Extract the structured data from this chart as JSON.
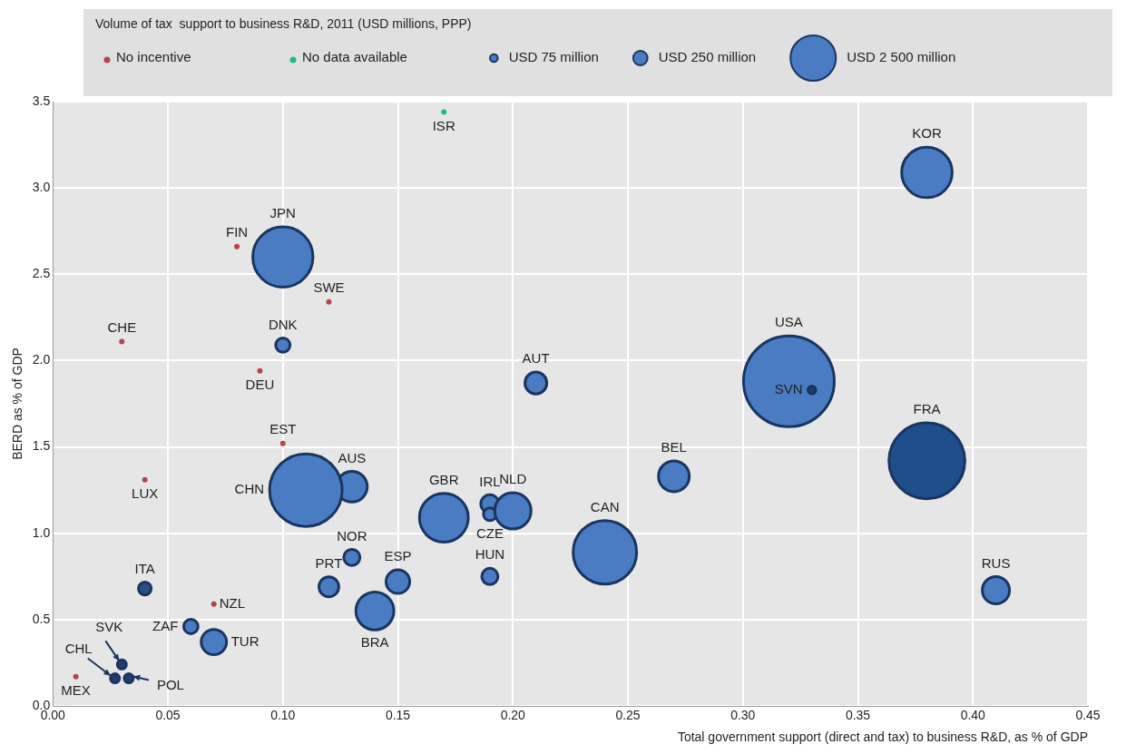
{
  "chart_data": {
    "type": "bubble",
    "xlabel": "Total government support (direct and tax) to business R&D, as % of GDP",
    "ylabel": "BERD as % of GDP",
    "legend_title": "Volume of tax  support to business R&D, 2011 (USD millions, PPP)",
    "legend": "top",
    "grid": true,
    "xlim": [
      0,
      0.45
    ],
    "xticks": [
      {
        "value": 0,
        "label": "0.00"
      },
      {
        "value": 0.05,
        "label": "0.05"
      },
      {
        "value": 0.1,
        "label": "0.10"
      },
      {
        "value": 0.15,
        "label": "0.15"
      },
      {
        "value": 0.2,
        "label": "0.20"
      },
      {
        "value": 0.25,
        "label": "0.25"
      },
      {
        "value": 0.3,
        "label": "0.30"
      },
      {
        "value": 0.35,
        "label": "0.35"
      },
      {
        "value": 0.4,
        "label": "0.40"
      },
      {
        "value": 0.45,
        "label": "0.45"
      }
    ],
    "ylim": [
      0,
      3.5
    ],
    "yticks": [
      {
        "value": 0,
        "label": "0.0"
      },
      {
        "value": 0.5,
        "label": "0.5"
      },
      {
        "value": 1,
        "label": "1.0"
      },
      {
        "value": 1.5,
        "label": "1.5"
      },
      {
        "value": 2,
        "label": "2.0"
      },
      {
        "value": 2.5,
        "label": "2.5"
      },
      {
        "value": 3,
        "label": "3.0"
      },
      {
        "value": 3.5,
        "label": "3.5"
      }
    ],
    "size_legend": [
      {
        "value": 75,
        "label": "USD 75 million"
      },
      {
        "value": 250,
        "label": "USD 250 million"
      },
      {
        "value": 2500,
        "label": "USD 2 500 million"
      }
    ],
    "series": [
      {
        "name": "No incentive",
        "color": "#b5444e",
        "x": [
          0.08,
          0.12,
          0.03,
          0.09,
          0.1,
          0.04,
          0.07,
          0.01
        ],
        "values": [
          2.66,
          2.34,
          2.11,
          1.94,
          1.52,
          1.31,
          0.59,
          0.17
        ],
        "value_labels": [
          "FIN",
          "SWE",
          "CHE",
          "DEU",
          "EST",
          "LUX",
          "NZL",
          "MEX"
        ]
      },
      {
        "name": "No data available",
        "color": "#1fbf7f",
        "x": [
          0.17
        ],
        "values": [
          3.44
        ],
        "value_labels": [
          "ISR"
        ]
      },
      {
        "color": "#4a7cc4",
        "x": [
          0.38,
          0.1,
          0.1,
          0.32,
          0.33,
          0.21,
          0.38,
          0.27,
          0.13,
          0.11,
          0.17,
          0.19,
          0.19,
          0.2,
          0.24,
          0.13,
          0.12,
          0.15,
          0.19,
          0.04,
          0.14,
          0.06,
          0.07,
          0.03,
          0.027,
          0.033,
          0.41
        ],
        "values": [
          3.09,
          2.6,
          2.09,
          1.88,
          1.83,
          1.87,
          1.42,
          1.33,
          1.27,
          1.25,
          1.09,
          1.17,
          1.11,
          1.13,
          0.89,
          0.86,
          0.69,
          0.72,
          0.75,
          0.68,
          0.55,
          0.46,
          0.37,
          0.24,
          0.16,
          0.16,
          0.67
        ],
        "sizes": [
          3100,
          4400,
          250,
          10000,
          75,
          580,
          7000,
          1150,
          1150,
          6400,
          2900,
          400,
          200,
          1600,
          4900,
          320,
          480,
          680,
          320,
          200,
          1750,
          250,
          780,
          100,
          100,
          100,
          900
        ],
        "colors": [
          "#4a7cc4",
          "#4a7cc4",
          "#4a7cc4",
          "#4a7cc4",
          "#1f3d6e",
          "#4a7cc4",
          "#1f4e8c",
          "#4a7cc4",
          "#4a7cc4",
          "#4a7cc4",
          "#4a7cc4",
          "#4a7cc4",
          "#4a7cc4",
          "#4a7cc4",
          "#4a7cc4",
          "#4a7cc4",
          "#4a7cc4",
          "#4a7cc4",
          "#4a7cc4",
          "#2a4f86",
          "#4a7cc4",
          "#4a7cc4",
          "#4a7cc4",
          "#1f3d6e",
          "#1f3d6e",
          "#1f3d6e",
          "#4a7cc4"
        ],
        "value_labels": [
          "KOR",
          "JPN",
          "DNK",
          "USA",
          "SVN",
          "AUT",
          "FRA",
          "BEL",
          "AUS",
          "CHN",
          "GBR",
          "IRL",
          "CZE",
          "NLD",
          "CAN",
          "NOR",
          "PRT",
          "ESP",
          "HUN",
          "ITA",
          "BRA",
          "ZAF",
          "TUR",
          "SVK",
          "CHL",
          "POL",
          "RUS"
        ]
      }
    ]
  }
}
